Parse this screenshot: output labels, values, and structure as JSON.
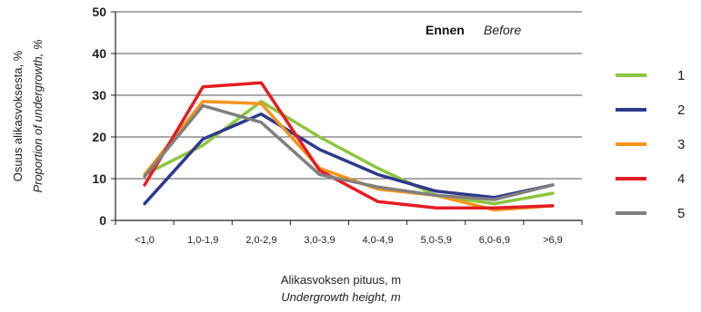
{
  "chart_data": {
    "type": "line",
    "categories": [
      "<1,0",
      "1,0-1,9",
      "2,0-2,9",
      "3,0-3,9",
      "4,0-4,9",
      "5,0-5,9",
      "6,0-6,9",
      ">6,9"
    ],
    "series": [
      {
        "name": "1",
        "color": "#8dc63f",
        "values": [
          11,
          18,
          28.5,
          20,
          12.5,
          6,
          4,
          6.5
        ]
      },
      {
        "name": "2",
        "color": "#2e3a8c",
        "values": [
          4,
          19.5,
          25.5,
          17,
          11,
          7,
          5.5,
          8.5
        ]
      },
      {
        "name": "3",
        "color": "#f7941d",
        "values": [
          11,
          28.5,
          28,
          12.5,
          7.5,
          6,
          2.5,
          3.5
        ]
      },
      {
        "name": "4",
        "color": "#e31e24",
        "values": [
          8.5,
          32,
          33,
          12,
          4.5,
          3,
          3,
          3.5
        ]
      },
      {
        "name": "5",
        "color": "#808080",
        "values": [
          10.5,
          27.5,
          23.5,
          11,
          8,
          6,
          5,
          8.5
        ]
      }
    ],
    "ylabel": [
      "Osuus alikasvoksesta, %",
      "Proportion of undergrowth, %"
    ],
    "xlabel": [
      "Alikasvoksen pituus, m",
      "Undergrowth height, m"
    ],
    "annotation": {
      "bold": "Ennen",
      "italic": "Before"
    },
    "yticks": [
      0,
      10,
      20,
      30,
      40,
      50
    ],
    "ylim": [
      0,
      50
    ],
    "grid": true,
    "legend_position": "right"
  }
}
